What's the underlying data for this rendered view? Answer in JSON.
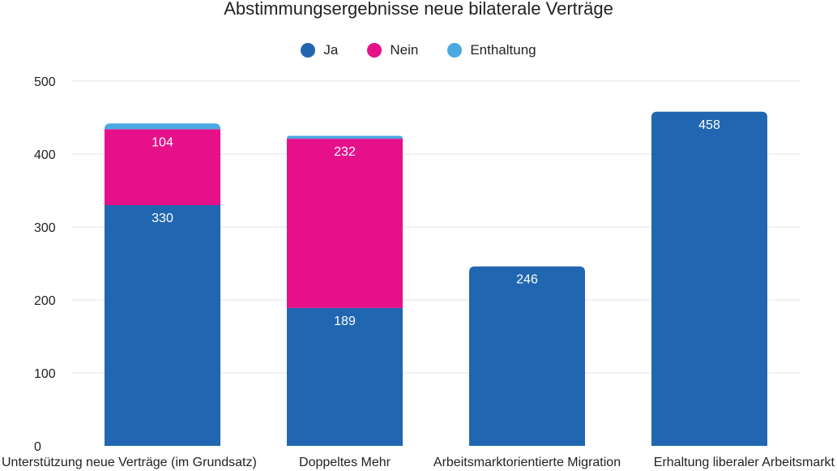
{
  "chart_data": {
    "type": "bar",
    "stacked": true,
    "title": "Abstimmungsergebnisse neue bilaterale Verträge",
    "categories": [
      "Unterstützung neue Verträge (im Grundsatz)",
      "Doppeltes Mehr",
      "Arbeitsmarktorientierte Migration",
      "Erhaltung liberaler Arbeitsmarkt"
    ],
    "series": [
      {
        "name": "Ja",
        "color": "#2166b0",
        "values": [
          330,
          189,
          246,
          458
        ]
      },
      {
        "name": "Nein",
        "color": "#e6108a",
        "values": [
          104,
          232,
          0,
          0
        ]
      },
      {
        "name": "Enthaltung",
        "color": "#4aa9e0",
        "values": [
          8,
          4,
          0,
          0
        ]
      }
    ],
    "data_labels": [
      [
        "330",
        "189",
        "246",
        "458"
      ],
      [
        "104",
        "232",
        "",
        ""
      ],
      [
        "",
        "",
        "",
        ""
      ]
    ],
    "ylim": [
      0,
      500
    ],
    "yticks": [
      0,
      100,
      200,
      300,
      400,
      500
    ],
    "ytick_labels": [
      "0",
      "100",
      "200",
      "300",
      "400",
      "500"
    ],
    "xlabel": "",
    "ylabel": "",
    "grid": true,
    "legend_position": "top-center"
  }
}
